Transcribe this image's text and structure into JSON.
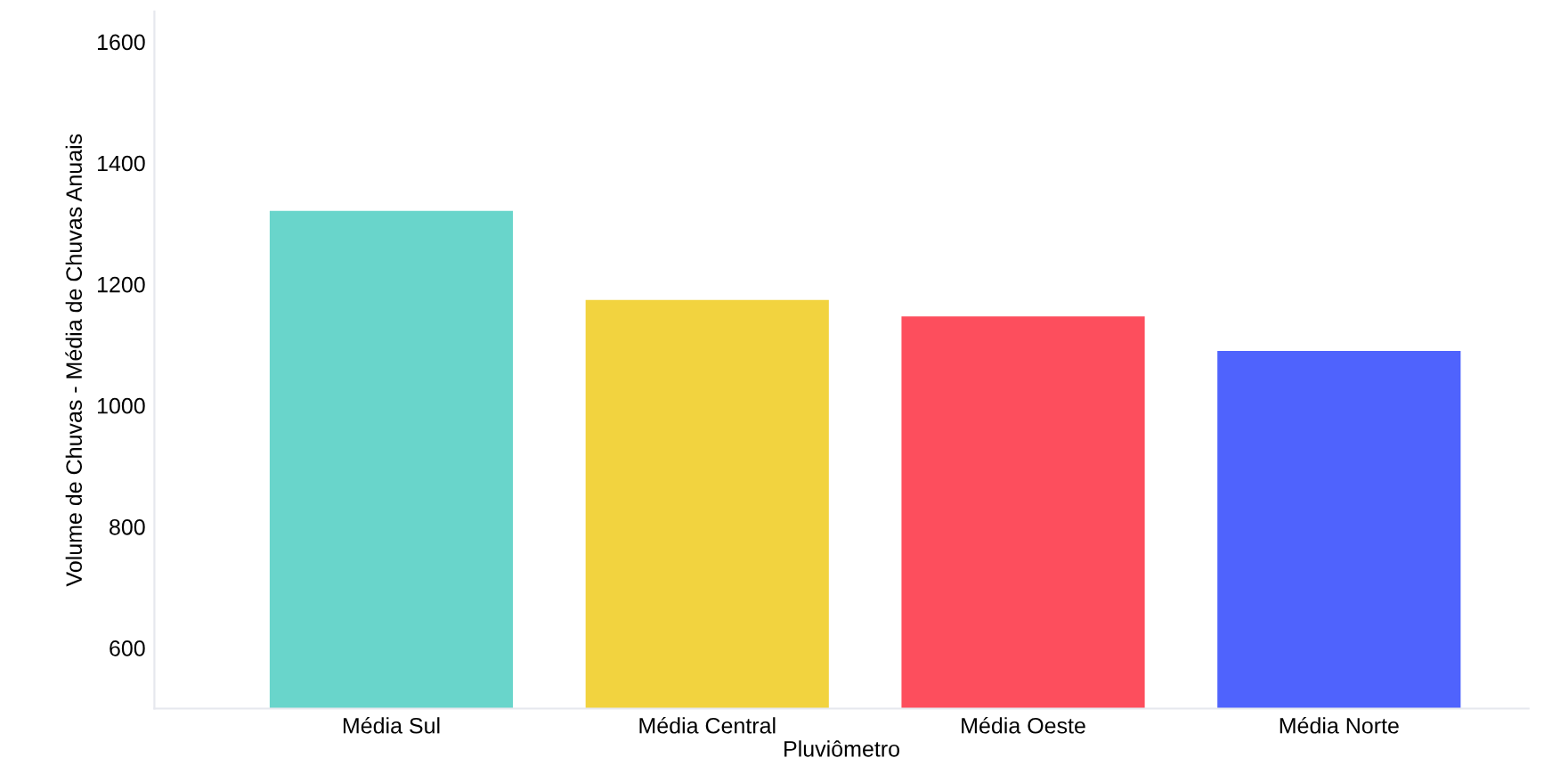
{
  "chart_data": {
    "type": "bar",
    "xlabel": "Pluviômetro",
    "ylabel": "Volume de Chuvas - Média de Chuvas Anuais",
    "categories": [
      "Média Sul",
      "Média Central",
      "Média Oeste",
      "Média Norte"
    ],
    "values": [
      1321,
      1174,
      1147,
      1090
    ],
    "colors": [
      "#69d5cb",
      "#f2d33f",
      "#fd4e5d",
      "#4f63fd"
    ],
    "ylim": [
      500,
      1650
    ],
    "yticks": [
      600,
      800,
      1000,
      1200,
      1400,
      1600
    ],
    "grid": false
  }
}
